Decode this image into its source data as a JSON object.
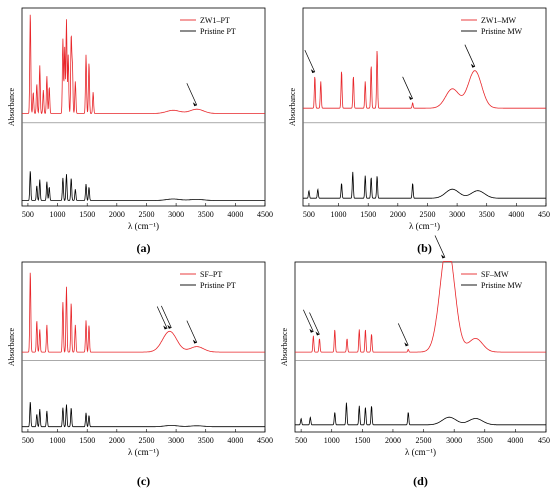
{
  "figure": {
    "y_axis_label": "Absorbance",
    "x_axis_label": "λ (cm⁻¹)"
  },
  "colors": {
    "red": "#e8262a",
    "black": "#000000",
    "axis": "#000000"
  },
  "chart_data": [
    {
      "panel_label": "(a)",
      "type": "line",
      "xlim": [
        400,
        4500
      ],
      "x_ticks": [
        500,
        1000,
        1500,
        2000,
        2500,
        3000,
        3500,
        4000,
        4500
      ],
      "ylabel": "Absorbance",
      "xlabel": "λ (cm⁻¹)",
      "legend_position": "top-right",
      "series": [
        {
          "name": "ZW1–PT",
          "color": "#e8262a",
          "offset": 0.6,
          "baseline": 0.05,
          "peaks": [
            [
              540,
              0.95
            ],
            [
              590,
              0.2
            ],
            [
              650,
              0.28
            ],
            [
              700,
              0.45
            ],
            [
              760,
              0.22
            ],
            [
              820,
              0.35
            ],
            [
              860,
              0.25
            ],
            [
              1090,
              0.7
            ],
            [
              1120,
              0.62
            ],
            [
              1150,
              0.88
            ],
            [
              1180,
              0.55
            ],
            [
              1230,
              0.72
            ],
            [
              1250,
              0.45
            ],
            [
              1300,
              0.3
            ],
            [
              1480,
              0.55
            ],
            [
              1530,
              0.48
            ],
            [
              1600,
              0.2
            ],
            [
              2950,
              0.03
            ],
            [
              3350,
              0.04
            ]
          ]
        },
        {
          "name": "Pristine PT",
          "color": "#000000",
          "offset": 0.05,
          "baseline": 0.02,
          "peaks": [
            [
              540,
              0.4
            ],
            [
              650,
              0.2
            ],
            [
              700,
              0.28
            ],
            [
              820,
              0.25
            ],
            [
              860,
              0.18
            ],
            [
              1090,
              0.3
            ],
            [
              1150,
              0.35
            ],
            [
              1230,
              0.3
            ],
            [
              1300,
              0.15
            ],
            [
              1480,
              0.22
            ],
            [
              1530,
              0.18
            ],
            [
              2950,
              0.02
            ],
            [
              3350,
              0.015
            ]
          ]
        }
      ],
      "annotations": [
        {
          "type": "arrow",
          "target_x": 3350
        }
      ]
    },
    {
      "panel_label": "(b)",
      "type": "line",
      "xlim": [
        400,
        4500
      ],
      "x_ticks": [
        500,
        1000,
        1500,
        2000,
        2500,
        3000,
        3500,
        4000,
        4500
      ],
      "ylabel": "Absorbance",
      "xlabel": "λ (cm⁻¹)",
      "legend_position": "top-right",
      "series": [
        {
          "name": "ZW1–MW",
          "color": "#e8262a",
          "offset": 0.6,
          "baseline": 0.1,
          "peaks": [
            [
              600,
              0.3
            ],
            [
              700,
              0.25
            ],
            [
              1050,
              0.35
            ],
            [
              1250,
              0.3
            ],
            [
              1450,
              0.25
            ],
            [
              1550,
              0.4
            ],
            [
              1650,
              0.55
            ],
            [
              2250,
              0.05
            ],
            [
              2920,
              0.18
            ],
            [
              3300,
              0.35
            ]
          ]
        },
        {
          "name": "Pristine MW",
          "color": "#000000",
          "offset": 0.05,
          "baseline": 0.05,
          "peaks": [
            [
              500,
              0.1
            ],
            [
              650,
              0.12
            ],
            [
              1050,
              0.2
            ],
            [
              1240,
              0.35
            ],
            [
              1450,
              0.3
            ],
            [
              1550,
              0.28
            ],
            [
              1650,
              0.3
            ],
            [
              2250,
              0.2
            ],
            [
              2920,
              0.12
            ],
            [
              3350,
              0.1
            ]
          ]
        }
      ],
      "annotations": [
        {
          "type": "arrow",
          "target_x": 600
        },
        {
          "type": "arrow",
          "target_x": 2250
        },
        {
          "type": "arrow",
          "target_x": 3300
        }
      ]
    },
    {
      "panel_label": "(c)",
      "type": "line",
      "xlim": [
        400,
        4500
      ],
      "x_ticks": [
        500,
        1000,
        1500,
        2000,
        2500,
        3000,
        3500,
        4000,
        4500
      ],
      "ylabel": "Absorbance",
      "xlabel": "λ (cm⁻¹)",
      "legend_position": "top-right",
      "series": [
        {
          "name": "SF–PT",
          "color": "#e8262a",
          "offset": 0.6,
          "baseline": 0.05,
          "peaks": [
            [
              540,
              0.9
            ],
            [
              650,
              0.35
            ],
            [
              700,
              0.25
            ],
            [
              820,
              0.3
            ],
            [
              1090,
              0.55
            ],
            [
              1150,
              0.72
            ],
            [
              1230,
              0.55
            ],
            [
              1300,
              0.3
            ],
            [
              1480,
              0.35
            ],
            [
              1530,
              0.3
            ],
            [
              2850,
              0.1
            ],
            [
              2920,
              0.14
            ],
            [
              3350,
              0.06
            ]
          ]
        },
        {
          "name": "Pristine PT",
          "color": "#000000",
          "offset": 0.05,
          "baseline": 0.02,
          "peaks": [
            [
              540,
              0.4
            ],
            [
              650,
              0.2
            ],
            [
              700,
              0.28
            ],
            [
              820,
              0.25
            ],
            [
              1090,
              0.3
            ],
            [
              1150,
              0.35
            ],
            [
              1230,
              0.3
            ],
            [
              1480,
              0.22
            ],
            [
              1530,
              0.18
            ],
            [
              2920,
              0.02
            ],
            [
              3350,
              0.015
            ]
          ]
        }
      ],
      "annotations": [
        {
          "type": "arrow",
          "target_x": 2850
        },
        {
          "type": "arrow",
          "target_x": 2920
        },
        {
          "type": "arrow",
          "target_x": 3350
        }
      ]
    },
    {
      "panel_label": "(d)",
      "type": "line",
      "xlim": [
        400,
        4500
      ],
      "x_ticks": [
        500,
        1000,
        1500,
        2000,
        2500,
        3000,
        3500,
        4000,
        4500
      ],
      "ylabel": "Absorbance",
      "xlabel": "λ (cm⁻¹)",
      "legend_position": "top-right",
      "series": [
        {
          "name": "SF–MW",
          "color": "#e8262a",
          "offset": 0.6,
          "baseline": 0.05,
          "peaks": [
            [
              700,
              0.18
            ],
            [
              800,
              0.15
            ],
            [
              1050,
              0.25
            ],
            [
              1250,
              0.15
            ],
            [
              1450,
              0.25
            ],
            [
              1550,
              0.25
            ],
            [
              1650,
              0.2
            ],
            [
              2250,
              0.03
            ],
            [
              2850,
              0.55
            ],
            [
              2920,
              0.7
            ],
            [
              3350,
              0.15
            ]
          ]
        },
        {
          "name": "Pristine MW",
          "color": "#000000",
          "offset": 0.05,
          "baseline": 0.05,
          "peaks": [
            [
              500,
              0.1
            ],
            [
              650,
              0.12
            ],
            [
              1050,
              0.2
            ],
            [
              1240,
              0.35
            ],
            [
              1450,
              0.3
            ],
            [
              1550,
              0.28
            ],
            [
              1650,
              0.3
            ],
            [
              2250,
              0.2
            ],
            [
              2920,
              0.12
            ],
            [
              3350,
              0.1
            ]
          ]
        }
      ],
      "annotations": [
        {
          "type": "arrow",
          "target_x": 700
        },
        {
          "type": "arrow",
          "target_x": 800
        },
        {
          "type": "arrow",
          "target_x": 2250
        },
        {
          "type": "arrow",
          "target_x": 2850
        }
      ]
    }
  ]
}
